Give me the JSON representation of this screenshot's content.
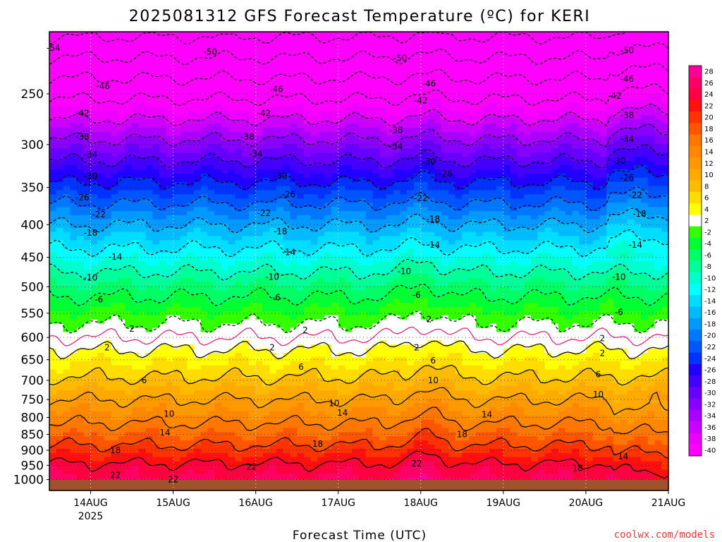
{
  "chart_data": {
    "type": "heatmap",
    "title": "2025081312 GFS Forecast Temperature (ºC) for KERI",
    "xlabel": "Forecast Time (UTC)",
    "ylabel": "",
    "credit": "coolwx.com/models",
    "x_ticks": [
      {
        "day": 0.0,
        "label": "14AUG",
        "sublabel": "2025"
      },
      {
        "day": 1.0,
        "label": "15AUG"
      },
      {
        "day": 2.0,
        "label": "16AUG"
      },
      {
        "day": 3.0,
        "label": "17AUG"
      },
      {
        "day": 4.0,
        "label": "18AUG"
      },
      {
        "day": 5.0,
        "label": "19AUG"
      },
      {
        "day": 6.0,
        "label": "20AUG"
      },
      {
        "day": 7.0,
        "label": "21AUG"
      }
    ],
    "xlim_days": [
      -0.5,
      7.0
    ],
    "y_scale": "log",
    "ylim_hPa": [
      1040,
      200
    ],
    "y_ticks": [
      250,
      300,
      350,
      400,
      450,
      500,
      550,
      600,
      650,
      700,
      750,
      800,
      850,
      900,
      950,
      1000
    ],
    "surface_pressure_hPa": 1000,
    "colorbar_ticks": [
      28,
      26,
      24,
      22,
      20,
      18,
      16,
      14,
      12,
      10,
      8,
      6,
      4,
      2,
      -2,
      -4,
      -6,
      -8,
      -10,
      -12,
      -14,
      -16,
      -18,
      -20,
      -22,
      -24,
      -26,
      -28,
      -30,
      -32,
      -34,
      -36,
      -38,
      -40
    ],
    "colorbar_colors": [
      "#ff0099",
      "#ff0066",
      "#ff0040",
      "#ff1010",
      "#ff3300",
      "#ff5500",
      "#ff7700",
      "#ff8800",
      "#ff9900",
      "#ffaa00",
      "#ffbb00",
      "#ffdd00",
      "#ffff00",
      "#ffffff",
      "#33ff00",
      "#00ff33",
      "#00ff66",
      "#00ff99",
      "#00ffcc",
      "#00ffff",
      "#00ddff",
      "#00bbff",
      "#0099ff",
      "#0077ff",
      "#0055ff",
      "#0033ff",
      "#2200ff",
      "#4400ff",
      "#6600ff",
      "#8800ff",
      "#aa00ff",
      "#cc00ff",
      "#ee00ff",
      "#ff00ff"
    ],
    "profile": [
      {
        "p": 1000,
        "t": 24.5
      },
      {
        "p": 950,
        "t": 22.5
      },
      {
        "p": 900,
        "t": 19
      },
      {
        "p": 850,
        "t": 16
      },
      {
        "p": 800,
        "t": 13
      },
      {
        "p": 750,
        "t": 10
      },
      {
        "p": 700,
        "t": 6.5
      },
      {
        "p": 650,
        "t": 3.5
      },
      {
        "p": 620,
        "t": 1.5
      },
      {
        "p": 600,
        "t": 0
      },
      {
        "p": 550,
        "t": -3.5
      },
      {
        "p": 500,
        "t": -7.5
      },
      {
        "p": 450,
        "t": -12.5
      },
      {
        "p": 400,
        "t": -18
      },
      {
        "p": 350,
        "t": -25
      },
      {
        "p": 300,
        "t": -33
      },
      {
        "p": 250,
        "t": -43
      },
      {
        "p": 200,
        "t": -55
      }
    ],
    "contour_levels": [
      -54,
      -50,
      -46,
      -42,
      -38,
      -34,
      -30,
      -26,
      -22,
      -18,
      -14,
      -10,
      -6,
      -2,
      2,
      6,
      10,
      14,
      18,
      22
    ],
    "contour_labels": [
      {
        "text": "-54",
        "day": -0.45,
        "p": 212
      },
      {
        "text": "-50",
        "day": 1.45,
        "p": 215
      },
      {
        "text": "-50",
        "day": 3.75,
        "p": 220
      },
      {
        "text": "-50",
        "day": 6.5,
        "p": 214
      },
      {
        "text": "-46",
        "day": 0.15,
        "p": 243
      },
      {
        "text": "-46",
        "day": 2.25,
        "p": 246
      },
      {
        "text": "-46",
        "day": 4.1,
        "p": 241
      },
      {
        "text": "-46",
        "day": 6.5,
        "p": 237
      },
      {
        "text": "-42",
        "day": -0.1,
        "p": 268
      },
      {
        "text": "-42",
        "day": 2.1,
        "p": 268
      },
      {
        "text": "-42",
        "day": 4.0,
        "p": 256
      },
      {
        "text": "-42",
        "day": 6.35,
        "p": 252
      },
      {
        "text": "-38",
        "day": -0.1,
        "p": 292
      },
      {
        "text": "-38",
        "day": 1.9,
        "p": 292
      },
      {
        "text": "-38",
        "day": 3.7,
        "p": 285
      },
      {
        "text": "-38",
        "day": 6.5,
        "p": 270
      },
      {
        "text": "-34",
        "day": 0.0,
        "p": 311
      },
      {
        "text": "-34",
        "day": 2.0,
        "p": 310
      },
      {
        "text": "-34",
        "day": 3.7,
        "p": 302
      },
      {
        "text": "-34",
        "day": 6.5,
        "p": 294
      },
      {
        "text": "-30",
        "day": 0.0,
        "p": 336
      },
      {
        "text": "-30",
        "day": 2.3,
        "p": 336
      },
      {
        "text": "-30",
        "day": 4.1,
        "p": 319
      },
      {
        "text": "-30",
        "day": 6.4,
        "p": 318
      },
      {
        "text": "-26",
        "day": -0.1,
        "p": 363
      },
      {
        "text": "-26",
        "day": 2.4,
        "p": 359
      },
      {
        "text": "-26",
        "day": 4.3,
        "p": 333
      },
      {
        "text": "-26",
        "day": 6.5,
        "p": 338
      },
      {
        "text": "-22",
        "day": 0.1,
        "p": 386
      },
      {
        "text": "-22",
        "day": 2.1,
        "p": 384
      },
      {
        "text": "-22",
        "day": 4.0,
        "p": 364
      },
      {
        "text": "-22",
        "day": 6.6,
        "p": 360
      },
      {
        "text": "-18",
        "day": 0.0,
        "p": 412
      },
      {
        "text": "-18",
        "day": 2.3,
        "p": 410
      },
      {
        "text": "-18",
        "day": 4.15,
        "p": 392
      },
      {
        "text": "-18",
        "day": 6.65,
        "p": 385
      },
      {
        "text": "-14",
        "day": 0.3,
        "p": 449
      },
      {
        "text": "-14",
        "day": 2.4,
        "p": 442
      },
      {
        "text": "-14",
        "day": 4.15,
        "p": 430
      },
      {
        "text": "-14",
        "day": 6.6,
        "p": 430
      },
      {
        "text": "-10",
        "day": 0.0,
        "p": 484
      },
      {
        "text": "-10",
        "day": 2.2,
        "p": 483
      },
      {
        "text": "-10",
        "day": 3.8,
        "p": 473
      },
      {
        "text": "-10",
        "day": 6.4,
        "p": 483
      },
      {
        "text": "-6",
        "day": 0.1,
        "p": 524
      },
      {
        "text": "-6",
        "day": 2.25,
        "p": 520
      },
      {
        "text": "-6",
        "day": 3.95,
        "p": 515
      },
      {
        "text": "-6",
        "day": 6.4,
        "p": 548
      },
      {
        "text": "2",
        "day": 0.5,
        "p": 582
      },
      {
        "text": "2",
        "day": 2.6,
        "p": 585
      },
      {
        "text": "2",
        "day": 4.1,
        "p": 562
      },
      {
        "text": "2",
        "day": 6.2,
        "p": 602
      },
      {
        "text": "2",
        "day": 0.2,
        "p": 622
      },
      {
        "text": "2",
        "day": 2.2,
        "p": 622
      },
      {
        "text": "2",
        "day": 3.95,
        "p": 622
      },
      {
        "text": "2",
        "day": 6.2,
        "p": 635
      },
      {
        "text": "6",
        "day": 0.65,
        "p": 700
      },
      {
        "text": "6",
        "day": 2.55,
        "p": 667
      },
      {
        "text": "6",
        "day": 4.15,
        "p": 652
      },
      {
        "text": "6",
        "day": 6.15,
        "p": 685
      },
      {
        "text": "10",
        "day": 0.95,
        "p": 790
      },
      {
        "text": "10",
        "day": 2.95,
        "p": 760
      },
      {
        "text": "10",
        "day": 4.15,
        "p": 700
      },
      {
        "text": "10",
        "day": 6.15,
        "p": 737
      },
      {
        "text": "14",
        "day": 0.9,
        "p": 845
      },
      {
        "text": "14",
        "day": 3.05,
        "p": 787
      },
      {
        "text": "14",
        "day": 4.8,
        "p": 792
      },
      {
        "text": "14",
        "day": 6.45,
        "p": 920
      },
      {
        "text": "18",
        "day": 0.3,
        "p": 900
      },
      {
        "text": "18",
        "day": 2.75,
        "p": 880
      },
      {
        "text": "18",
        "day": 4.5,
        "p": 850
      },
      {
        "text": "18",
        "day": 5.9,
        "p": 960
      },
      {
        "text": "22",
        "day": 0.3,
        "p": 985
      },
      {
        "text": "22",
        "day": 1.95,
        "p": 955
      },
      {
        "text": "22",
        "day": 3.95,
        "p": 945
      },
      {
        "text": "22",
        "day": 1.0,
        "p": 1000
      }
    ]
  }
}
